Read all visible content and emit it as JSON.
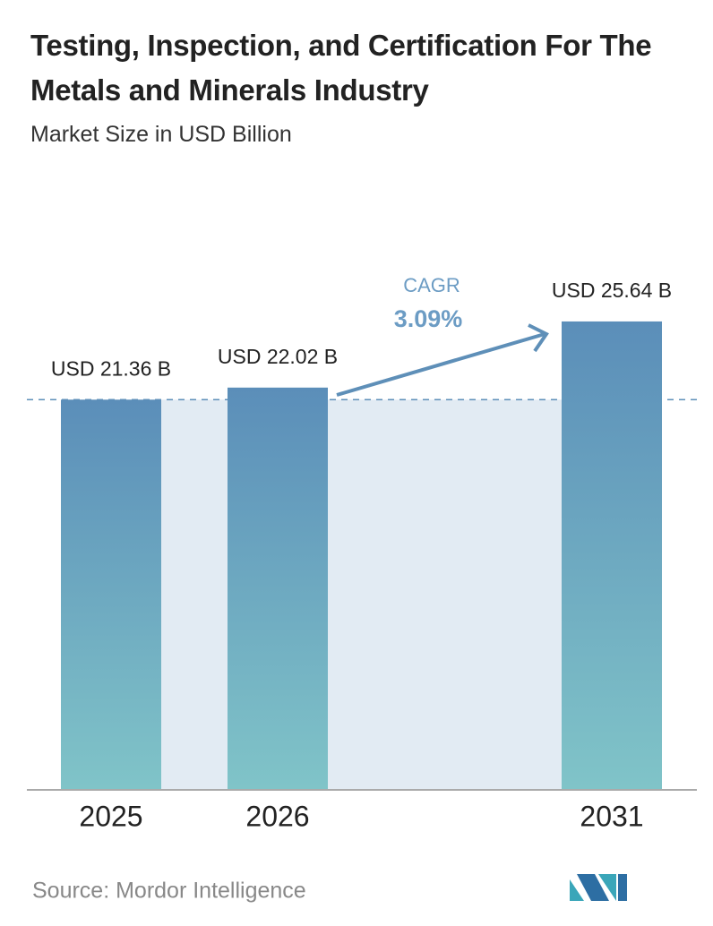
{
  "chart_data": {
    "type": "bar",
    "title": "Testing, Inspection, and Certification For The Metals and Minerals Industry",
    "subtitle": "Market Size in USD Billion",
    "categories": [
      "2025",
      "2026",
      "2031"
    ],
    "values": [
      21.36,
      22.02,
      25.64
    ],
    "value_labels": [
      "USD 21.36 B",
      "USD 22.02 B",
      "USD 25.64 B"
    ],
    "annotation": {
      "label": "CAGR",
      "value": "3.09%"
    },
    "source": "Source: Mordor Intelligence"
  }
}
